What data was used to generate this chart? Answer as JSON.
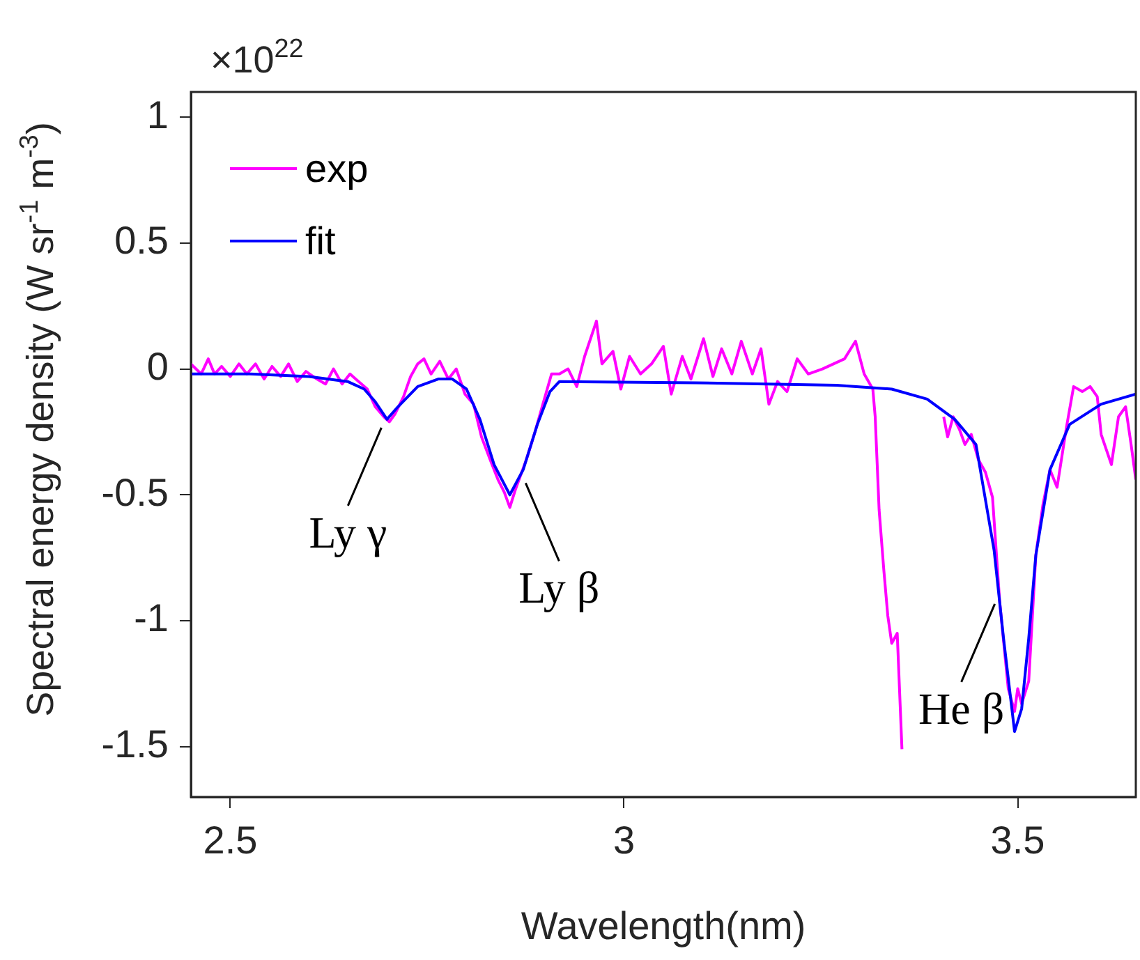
{
  "chart_data": {
    "type": "line",
    "xlabel": "Wavelength(nm)",
    "ylabel": "Spectral energy density (W sr$^{-1}$ m$^{-3}$)",
    "xlim": [
      2.45,
      3.65
    ],
    "xticks": [
      2.5,
      3,
      3.5
    ],
    "ylim": [
      -1.7,
      1.1
    ],
    "yticks": [
      -1.5,
      -1,
      -0.5,
      0,
      0.5,
      1
    ],
    "legend": "top left",
    "annotations": [
      "×10$^{22}$",
      {
        "text": "Ly γ",
        "x": 2.699,
        "y": -0.2
      },
      {
        "text": "Ly β",
        "x": 2.868,
        "y": -0.42
      },
      {
        "text": "He β",
        "x": 3.478,
        "y": -0.9
      }
    ],
    "series": [
      {
        "name": "exp",
        "color": "#ff00ff",
        "x": [
          2.45,
          2.463,
          2.472,
          2.48,
          2.489,
          2.5,
          2.511,
          2.521,
          2.532,
          2.543,
          2.553,
          2.564,
          2.574,
          2.585,
          2.596,
          2.61,
          2.621,
          2.631,
          2.642,
          2.652,
          2.663,
          2.674,
          2.684,
          2.695,
          2.702,
          2.709,
          2.72,
          2.729,
          2.738,
          2.746,
          2.755,
          2.766,
          2.777,
          2.787,
          2.798,
          2.809,
          2.819,
          2.83,
          2.84,
          2.848,
          2.855,
          2.862,
          2.869,
          2.876,
          2.887,
          2.897,
          2.908,
          2.918,
          2.929,
          2.94,
          2.95,
          2.965,
          2.972,
          2.986,
          2.996,
          3.007,
          3.021,
          3.035,
          3.05,
          3.06,
          3.074,
          3.085,
          3.101,
          3.113,
          3.124,
          3.137,
          3.149,
          3.163,
          3.174,
          3.184,
          3.195,
          3.207,
          3.22,
          3.234,
          3.252,
          3.266,
          3.28,
          3.294,
          3.305,
          3.316,
          3.319,
          3.324,
          3.33,
          3.335,
          3.34,
          3.347,
          3.353,
          3.355,
          3.38,
          3.404,
          3.406,
          3.411,
          3.418,
          3.426,
          3.433,
          3.441,
          3.45,
          3.459,
          3.468,
          3.477,
          3.488,
          3.496,
          3.5,
          3.505,
          3.514,
          3.523,
          3.532,
          3.541,
          3.55,
          3.562,
          3.571,
          3.582,
          3.592,
          3.601,
          3.606,
          3.619,
          3.628,
          3.637,
          3.644,
          3.65
        ],
        "values": [
          0.02,
          -0.02,
          0.04,
          -0.02,
          0.01,
          -0.03,
          0.02,
          -0.02,
          0.02,
          -0.04,
          0.01,
          -0.03,
          0.02,
          -0.05,
          -0.01,
          -0.04,
          -0.06,
          0,
          -0.06,
          -0.02,
          -0.05,
          -0.08,
          -0.15,
          -0.19,
          -0.21,
          -0.18,
          -0.11,
          -0.03,
          0.02,
          0.04,
          -0.02,
          0.03,
          -0.04,
          0,
          -0.1,
          -0.14,
          -0.27,
          -0.36,
          -0.44,
          -0.49,
          -0.55,
          -0.48,
          -0.42,
          -0.36,
          -0.25,
          -0.14,
          -0.02,
          -0.02,
          0,
          -0.07,
          0.05,
          0.19,
          0.02,
          0.07,
          -0.08,
          0.05,
          -0.02,
          0.02,
          0.09,
          -0.1,
          0.05,
          -0.04,
          0.12,
          -0.03,
          0.08,
          -0.02,
          0.11,
          -0.02,
          0.08,
          -0.14,
          -0.05,
          -0.09,
          0.04,
          -0.02,
          0,
          0.02,
          0.04,
          0.11,
          -0.02,
          -0.08,
          -0.19,
          -0.56,
          -0.8,
          -0.98,
          -1.09,
          -1.05,
          -1.51,
          null,
          null,
          null,
          -0.19,
          -0.27,
          -0.19,
          -0.24,
          -0.3,
          -0.26,
          -0.36,
          -0.41,
          -0.51,
          -0.92,
          -1.27,
          -1.36,
          -1.27,
          -1.33,
          -1.24,
          -0.74,
          -0.54,
          -0.4,
          -0.47,
          -0.23,
          -0.07,
          -0.09,
          -0.07,
          -0.11,
          -0.26,
          -0.38,
          -0.19,
          -0.15,
          -0.3,
          -0.44
        ]
      },
      {
        "name": "fit",
        "color": "#0000ff",
        "x": [
          2.45,
          2.525,
          2.6,
          2.649,
          2.67,
          2.684,
          2.699,
          2.713,
          2.738,
          2.764,
          2.782,
          2.8,
          2.817,
          2.835,
          2.855,
          2.872,
          2.89,
          2.906,
          2.918,
          3.092,
          3.27,
          3.34,
          3.385,
          3.42,
          3.447,
          3.47,
          3.482,
          3.496,
          3.505,
          3.514,
          3.523,
          3.541,
          3.566,
          3.606,
          3.65
        ],
        "values": [
          -0.02,
          -0.02,
          -0.03,
          -0.05,
          -0.08,
          -0.13,
          -0.2,
          -0.15,
          -0.07,
          -0.04,
          -0.04,
          -0.08,
          -0.2,
          -0.38,
          -0.5,
          -0.4,
          -0.22,
          -0.09,
          -0.05,
          -0.055,
          -0.065,
          -0.08,
          -0.12,
          -0.2,
          -0.3,
          -0.72,
          -1.07,
          -1.44,
          -1.35,
          -1.07,
          -0.74,
          -0.4,
          -0.22,
          -0.14,
          -0.1
        ]
      }
    ]
  }
}
